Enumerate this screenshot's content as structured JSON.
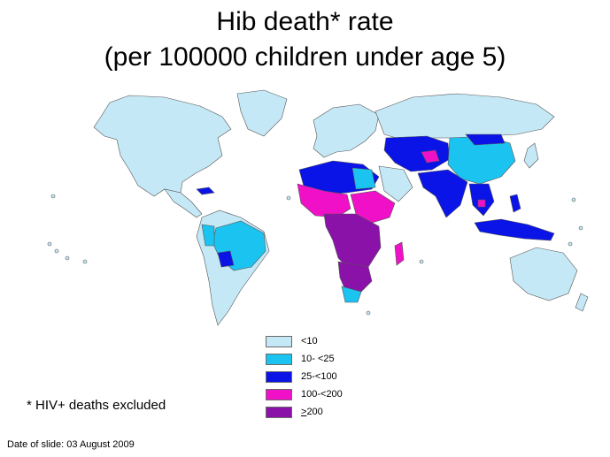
{
  "title": "Hib death* rate",
  "subtitle": "(per 100000 children under age 5)",
  "colors": {
    "lt10": "#c5e8f6",
    "r10_25": "#1bc3f0",
    "r25_100": "#0a14e6",
    "r100_200": "#f010c8",
    "gte200": "#8a12a8",
    "border": "#555555"
  },
  "legend": [
    {
      "label": "<10",
      "color_key": "lt10"
    },
    {
      "label": "10- <25",
      "color_key": "r10_25"
    },
    {
      "label": "25-<100",
      "color_key": "r25_100"
    },
    {
      "label": "100-<200",
      "color_key": "r100_200"
    },
    {
      "label": "200",
      "prefix": ">",
      "color_key": "gte200"
    }
  ],
  "footnote": "* HIV+ deaths excluded",
  "date": "Date of slide: 03 August 2009"
}
